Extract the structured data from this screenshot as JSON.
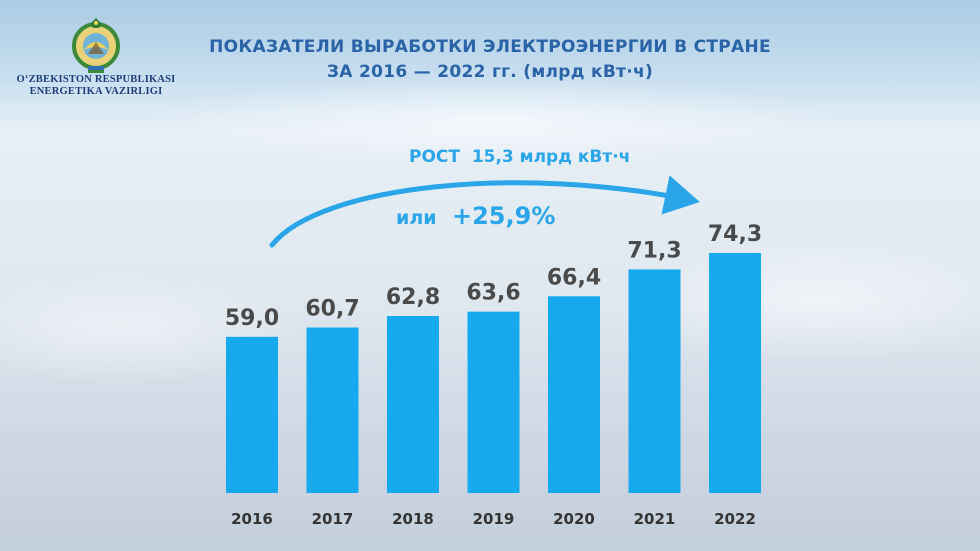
{
  "header": {
    "ministry_line1": "O‘ZBEKISTON RESPUBLIKASI",
    "ministry_line2": "ENERGETIKA VAZIRLIGI",
    "title_line1": "ПОКАЗАТЕЛИ ВЫРАБОТКИ ЭЛЕКТРОЭНЕРГИИ В СТРАНЕ",
    "title_line2": "ЗА 2016 — 2022 гг. (млрд кВт·ч)"
  },
  "annotation": {
    "growth_label": "РОСТ  15,3 млрд кВт·ч",
    "percent_prefix": "или",
    "percent_value": "+25,9%"
  },
  "colors": {
    "bar": "#17a9ee",
    "value_text": "#4a4a4a",
    "title": "#2a63a6",
    "annotation": "#29a5e8"
  },
  "chart_data": {
    "type": "bar",
    "categories": [
      "2016",
      "2017",
      "2018",
      "2019",
      "2020",
      "2021",
      "2022"
    ],
    "values": [
      59.0,
      60.7,
      62.8,
      63.6,
      66.4,
      71.3,
      74.3
    ],
    "value_labels": [
      "59,0",
      "60,7",
      "62,8",
      "63,6",
      "66,4",
      "71,3",
      "74,3"
    ],
    "title": "ПОКАЗАТЕЛИ ВЫРАБОТКИ ЭЛЕКТРОЭНЕРГИИ В СТРАНЕ ЗА 2016 — 2022 гг. (млрд кВт·ч)",
    "xlabel": "",
    "ylabel": "",
    "grid": false,
    "legend": "none"
  }
}
